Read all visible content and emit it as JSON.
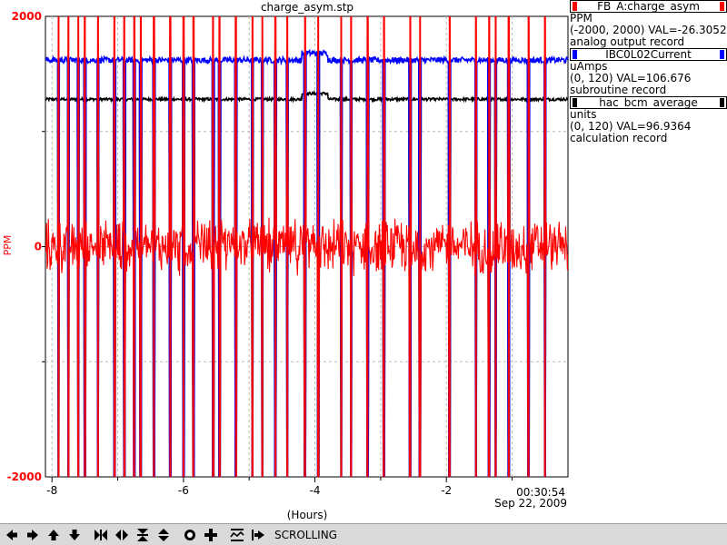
{
  "chart_data": {
    "type": "line",
    "title": "charge_asym.stp",
    "xlabel": "(Hours)",
    "ylabel": "PPM",
    "x_ticks": [
      "-8",
      "-6",
      "-4",
      "-2"
    ],
    "x_tick_values": [
      -8,
      -6,
      -4,
      -2
    ],
    "end_time": "00:30:54",
    "end_date": "Sep 22, 2009",
    "xlim": [
      -8.1,
      -0.15
    ],
    "ylim": [
      -2000,
      2000
    ],
    "y_ticks": [
      "2000",
      "0",
      "-2000"
    ],
    "y_tick_values": [
      2000,
      0,
      -2000
    ],
    "grid": true,
    "legend_position": "right",
    "series": [
      {
        "name": "FB_A:charge_asym",
        "color": "#ff0000",
        "units": "PPM",
        "range": "(-2000, 2000)",
        "value": "VAL=-26.3052",
        "record": "analog output record",
        "baseline": 0,
        "noise": 170
      },
      {
        "name": "IBC0L02Current",
        "color": "#0000ff",
        "units": "uAmps",
        "range": "(0, 120)",
        "value": "VAL=106.676",
        "record": "subroutine record",
        "baseline": 1620,
        "noise": 25
      },
      {
        "name": "hac_bcm_average",
        "color": "#000000",
        "units": "units",
        "range": "(0, 120)",
        "value": "VAL=96.9364",
        "record": "calculation record",
        "baseline": 1280,
        "noise": 12
      }
    ],
    "beam_trips_hours": [
      -7.9,
      -7.75,
      -7.6,
      -7.5,
      -7.3,
      -7.05,
      -6.9,
      -6.75,
      -6.65,
      -6.45,
      -6.2,
      -6.0,
      -5.85,
      -5.55,
      -5.45,
      -5.2,
      -4.95,
      -4.8,
      -4.6,
      -4.42,
      -4.15,
      -3.95,
      -3.6,
      -3.45,
      -3.2,
      -2.95,
      -2.55,
      -2.4,
      -1.95,
      -1.55,
      -1.35,
      -1.25,
      -1.05,
      -0.75,
      -0.5
    ]
  },
  "toolbar": {
    "status": "SCROLLING",
    "icons": [
      "arrow-left-icon",
      "arrow-right-icon",
      "arrow-up-icon",
      "arrow-down-icon",
      "zoom-x-in-icon",
      "zoom-x-out-icon",
      "zoom-y-in-icon",
      "zoom-y-out-icon",
      "record-icon",
      "add-icon",
      "autoscale-icon",
      "scroll-icon"
    ]
  }
}
